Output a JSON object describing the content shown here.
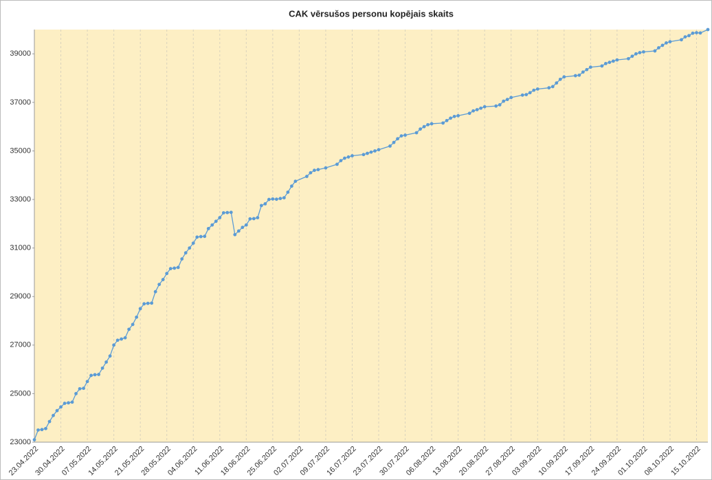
{
  "chart_data": {
    "type": "line",
    "title": "CAK vērsušos personu kopējais skaits",
    "color": "#5b9bd5",
    "background": "#fdefc4",
    "grid": true,
    "x": [
      "23.04.2022",
      "24.04.2022",
      "25.04.2022",
      "26.04.2022",
      "27.04.2022",
      "28.04.2022",
      "29.04.2022",
      "30.04.2022",
      "01.05.2022",
      "02.05.2022",
      "03.05.2022",
      "04.05.2022",
      "05.05.2022",
      "06.05.2022",
      "07.05.2022",
      "08.05.2022",
      "09.05.2022",
      "10.05.2022",
      "11.05.2022",
      "12.05.2022",
      "13.05.2022",
      "14.05.2022",
      "15.05.2022",
      "16.05.2022",
      "17.05.2022",
      "18.05.2022",
      "19.05.2022",
      "20.05.2022",
      "21.05.2022",
      "22.05.2022",
      "23.05.2022",
      "24.05.2022",
      "25.05.2022",
      "26.05.2022",
      "27.05.2022",
      "28.05.2022",
      "29.05.2022",
      "30.05.2022",
      "31.05.2022",
      "01.06.2022",
      "02.06.2022",
      "03.06.2022",
      "04.06.2022",
      "05.06.2022",
      "06.06.2022",
      "07.06.2022",
      "08.06.2022",
      "09.06.2022",
      "10.06.2022",
      "11.06.2022",
      "12.06.2022",
      "13.06.2022",
      "14.06.2022",
      "15.06.2022",
      "16.06.2022",
      "17.06.2022",
      "18.06.2022",
      "19.06.2022",
      "20.06.2022",
      "21.06.2022",
      "22.06.2022",
      "23.06.2022",
      "24.06.2022",
      "25.06.2022",
      "26.06.2022",
      "27.06.2022",
      "28.06.2022",
      "29.06.2022",
      "30.06.2022",
      "01.07.2022",
      "04.07.2022",
      "05.07.2022",
      "06.07.2022",
      "07.07.2022",
      "09.07.2022",
      "12.07.2022",
      "13.07.2022",
      "14.07.2022",
      "15.07.2022",
      "16.07.2022",
      "19.07.2022",
      "20.07.2022",
      "21.07.2022",
      "22.07.2022",
      "23.07.2022",
      "26.07.2022",
      "27.07.2022",
      "28.07.2022",
      "29.07.2022",
      "30.07.2022",
      "02.08.2022",
      "03.08.2022",
      "04.08.2022",
      "05.08.2022",
      "06.08.2022",
      "09.08.2022",
      "10.08.2022",
      "11.08.2022",
      "12.08.2022",
      "13.08.2022",
      "16.08.2022",
      "17.08.2022",
      "18.08.2022",
      "19.08.2022",
      "20.08.2022",
      "23.08.2022",
      "24.08.2022",
      "25.08.2022",
      "26.08.2022",
      "27.08.2022",
      "30.08.2022",
      "31.08.2022",
      "01.09.2022",
      "02.09.2022",
      "03.09.2022",
      "06.09.2022",
      "07.09.2022",
      "08.09.2022",
      "09.09.2022",
      "10.09.2022",
      "13.09.2022",
      "14.09.2022",
      "15.09.2022",
      "16.09.2022",
      "17.09.2022",
      "20.09.2022",
      "21.09.2022",
      "22.09.2022",
      "23.09.2022",
      "24.09.2022",
      "27.09.2022",
      "28.09.2022",
      "29.09.2022",
      "30.09.2022",
      "01.10.2022",
      "04.10.2022",
      "05.10.2022",
      "06.10.2022",
      "07.10.2022",
      "08.10.2022",
      "11.10.2022",
      "12.10.2022",
      "13.10.2022",
      "14.10.2022",
      "15.10.2022",
      "16.10.2022",
      "18.10.2022"
    ],
    "values": [
      23100,
      23500,
      23520,
      23560,
      23850,
      24100,
      24300,
      24450,
      24600,
      24620,
      24650,
      25000,
      25200,
      25220,
      25500,
      25750,
      25780,
      25790,
      26050,
      26300,
      26550,
      27000,
      27200,
      27250,
      27300,
      27650,
      27850,
      28150,
      28500,
      28700,
      28720,
      28730,
      29200,
      29500,
      29700,
      29950,
      30150,
      30170,
      30200,
      30550,
      30800,
      31000,
      31200,
      31450,
      31470,
      31480,
      31800,
      31950,
      32100,
      32250,
      32450,
      32460,
      32470,
      31550,
      31700,
      31850,
      31950,
      32200,
      32210,
      32250,
      32750,
      32820,
      33000,
      33020,
      33010,
      33040,
      33070,
      33300,
      33550,
      33750,
      33950,
      34100,
      34200,
      34230,
      34300,
      34450,
      34600,
      34700,
      34750,
      34800,
      34850,
      34900,
      34950,
      35000,
      35050,
      35200,
      35350,
      35500,
      35620,
      35650,
      35750,
      35900,
      36000,
      36080,
      36120,
      36150,
      36250,
      36350,
      36420,
      36450,
      36550,
      36650,
      36700,
      36760,
      36820,
      36850,
      36900,
      37050,
      37120,
      37200,
      37300,
      37320,
      37400,
      37500,
      37550,
      37600,
      37650,
      37800,
      37950,
      38050,
      38100,
      38120,
      38250,
      38350,
      38450,
      38500,
      38600,
      38650,
      38700,
      38750,
      38800,
      38900,
      39000,
      39050,
      39080,
      39120,
      39250,
      39350,
      39450,
      39500,
      39580,
      39700,
      39750,
      39850,
      39870,
      39860,
      40000
    ],
    "xlim": [
      "23.04.2022",
      "18.10.2022"
    ],
    "xticks": [
      "23.04.2022",
      "30.04.2022",
      "07.05.2022",
      "14.05.2022",
      "21.05.2022",
      "28.05.2022",
      "04.06.2022",
      "11.06.2022",
      "18.06.2022",
      "25.06.2022",
      "02.07.2022",
      "09.07.2022",
      "16.07.2022",
      "23.07.2022",
      "30.07.2022",
      "06.08.2022",
      "13.08.2022",
      "20.08.2022",
      "27.08.2022",
      "03.09.2022",
      "10.09.2022",
      "17.09.2022",
      "24.09.2022",
      "01.10.2022",
      "08.10.2022",
      "15.10.2022"
    ],
    "ylim": [
      23000,
      40000
    ],
    "yticks": [
      23000,
      25000,
      27000,
      29000,
      31000,
      33000,
      35000,
      37000,
      39000
    ]
  }
}
